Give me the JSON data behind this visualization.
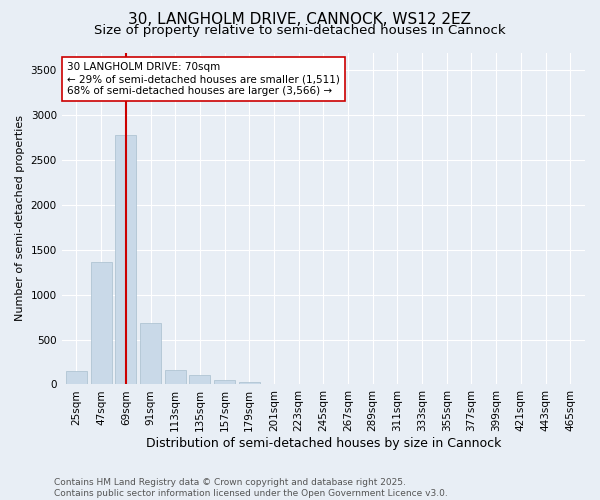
{
  "title_line1": "30, LANGHOLM DRIVE, CANNOCK, WS12 2EZ",
  "title_line2": "Size of property relative to semi-detached houses in Cannock",
  "xlabel": "Distribution of semi-detached houses by size in Cannock",
  "ylabel": "Number of semi-detached properties",
  "categories": [
    "25sqm",
    "47sqm",
    "69sqm",
    "91sqm",
    "113sqm",
    "135sqm",
    "157sqm",
    "179sqm",
    "201sqm",
    "223sqm",
    "245sqm",
    "267sqm",
    "289sqm",
    "311sqm",
    "333sqm",
    "355sqm",
    "377sqm",
    "399sqm",
    "421sqm",
    "443sqm",
    "465sqm"
  ],
  "values": [
    150,
    1370,
    2780,
    690,
    165,
    105,
    50,
    30,
    0,
    0,
    0,
    0,
    0,
    0,
    0,
    0,
    0,
    0,
    0,
    0,
    0
  ],
  "bar_color": "#c9d9e8",
  "bar_edge_color": "#a8bece",
  "vline_x_index": 2,
  "vline_color": "#cc0000",
  "annotation_text": "30 LANGHOLM DRIVE: 70sqm\n← 29% of semi-detached houses are smaller (1,511)\n68% of semi-detached houses are larger (3,566) →",
  "annotation_box_color": "#ffffff",
  "annotation_box_edge": "#cc0000",
  "ylim": [
    0,
    3700
  ],
  "yticks": [
    0,
    500,
    1000,
    1500,
    2000,
    2500,
    3000,
    3500
  ],
  "bg_color": "#e8eef5",
  "plot_bg_color": "#e8eef5",
  "footer_line1": "Contains HM Land Registry data © Crown copyright and database right 2025.",
  "footer_line2": "Contains public sector information licensed under the Open Government Licence v3.0.",
  "title_fontsize": 11,
  "subtitle_fontsize": 9.5,
  "xlabel_fontsize": 9,
  "ylabel_fontsize": 8,
  "tick_fontsize": 7.5,
  "footer_fontsize": 6.5,
  "annotation_fontsize": 7.5
}
